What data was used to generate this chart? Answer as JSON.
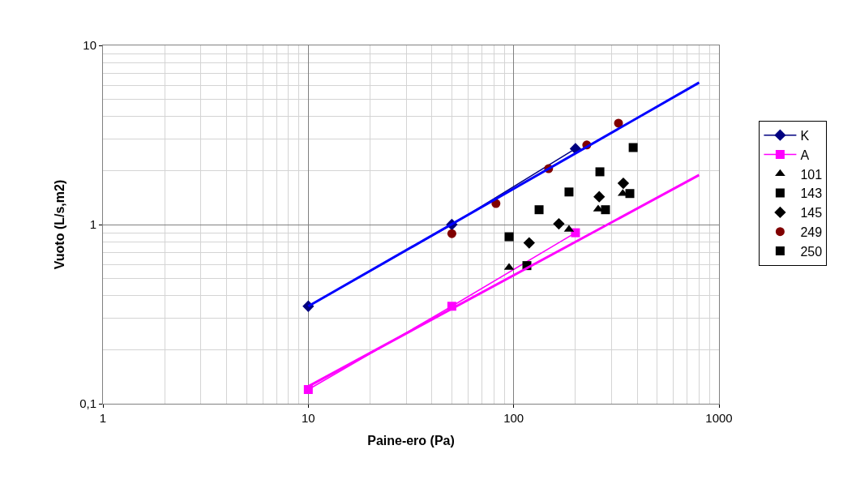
{
  "chart_data": {
    "type": "scatter",
    "xlabel": "Paine-ero (Pa)",
    "ylabel": "Vuoto (L/s,m2)",
    "log": "xy",
    "grid": true,
    "legend": "right",
    "xlim": [
      1,
      1000
    ],
    "xticks": [
      1,
      10,
      100,
      1000
    ],
    "ylim": [
      0.1,
      10
    ],
    "yticks": [
      {
        "value": 0.1,
        "label": "0,1"
      },
      1,
      10
    ],
    "series": [
      {
        "name": "K",
        "type": "line",
        "marker": "diamond",
        "color": "#000080",
        "x": [
          10,
          50,
          200
        ],
        "values": [
          0.35,
          1.0,
          2.65
        ]
      },
      {
        "name": "A",
        "type": "line",
        "marker": "square",
        "color": "#ff00ff",
        "x": [
          10,
          50,
          200
        ],
        "values": [
          0.12,
          0.35,
          0.9
        ]
      },
      {
        "name": "101",
        "marker": "triangle",
        "color": "#000000",
        "x": [
          95,
          186,
          258,
          340
        ],
        "values": [
          0.575,
          0.94,
          1.22,
          1.49
        ]
      },
      {
        "name": "143",
        "marker": "square",
        "color": "#000000",
        "x": [
          116,
          280,
          368
        ],
        "values": [
          0.59,
          1.21,
          1.49
        ]
      },
      {
        "name": "145",
        "marker": "diamond",
        "color": "#000000",
        "x": [
          119,
          166,
          261,
          342
        ],
        "values": [
          0.79,
          1.01,
          1.43,
          1.7
        ]
      },
      {
        "name": "249",
        "marker": "circle",
        "color": "#800000",
        "x": [
          50,
          82,
          148,
          227,
          324
        ],
        "values": [
          0.89,
          1.31,
          2.05,
          2.78,
          3.68
        ]
      },
      {
        "name": "250",
        "marker": "square",
        "color": "#000000",
        "x": [
          95,
          133,
          186,
          263,
          382
        ],
        "values": [
          0.855,
          1.21,
          1.52,
          1.97,
          2.69
        ]
      },
      {
        "type": "line",
        "marker": "none",
        "color": "#0000ff",
        "x": [
          10,
          800
        ],
        "values": [
          0.35,
          6.2
        ]
      },
      {
        "type": "line",
        "marker": "none",
        "color": "#ff00ff",
        "x": [
          10,
          800
        ],
        "values": [
          0.125,
          1.89
        ]
      }
    ]
  }
}
